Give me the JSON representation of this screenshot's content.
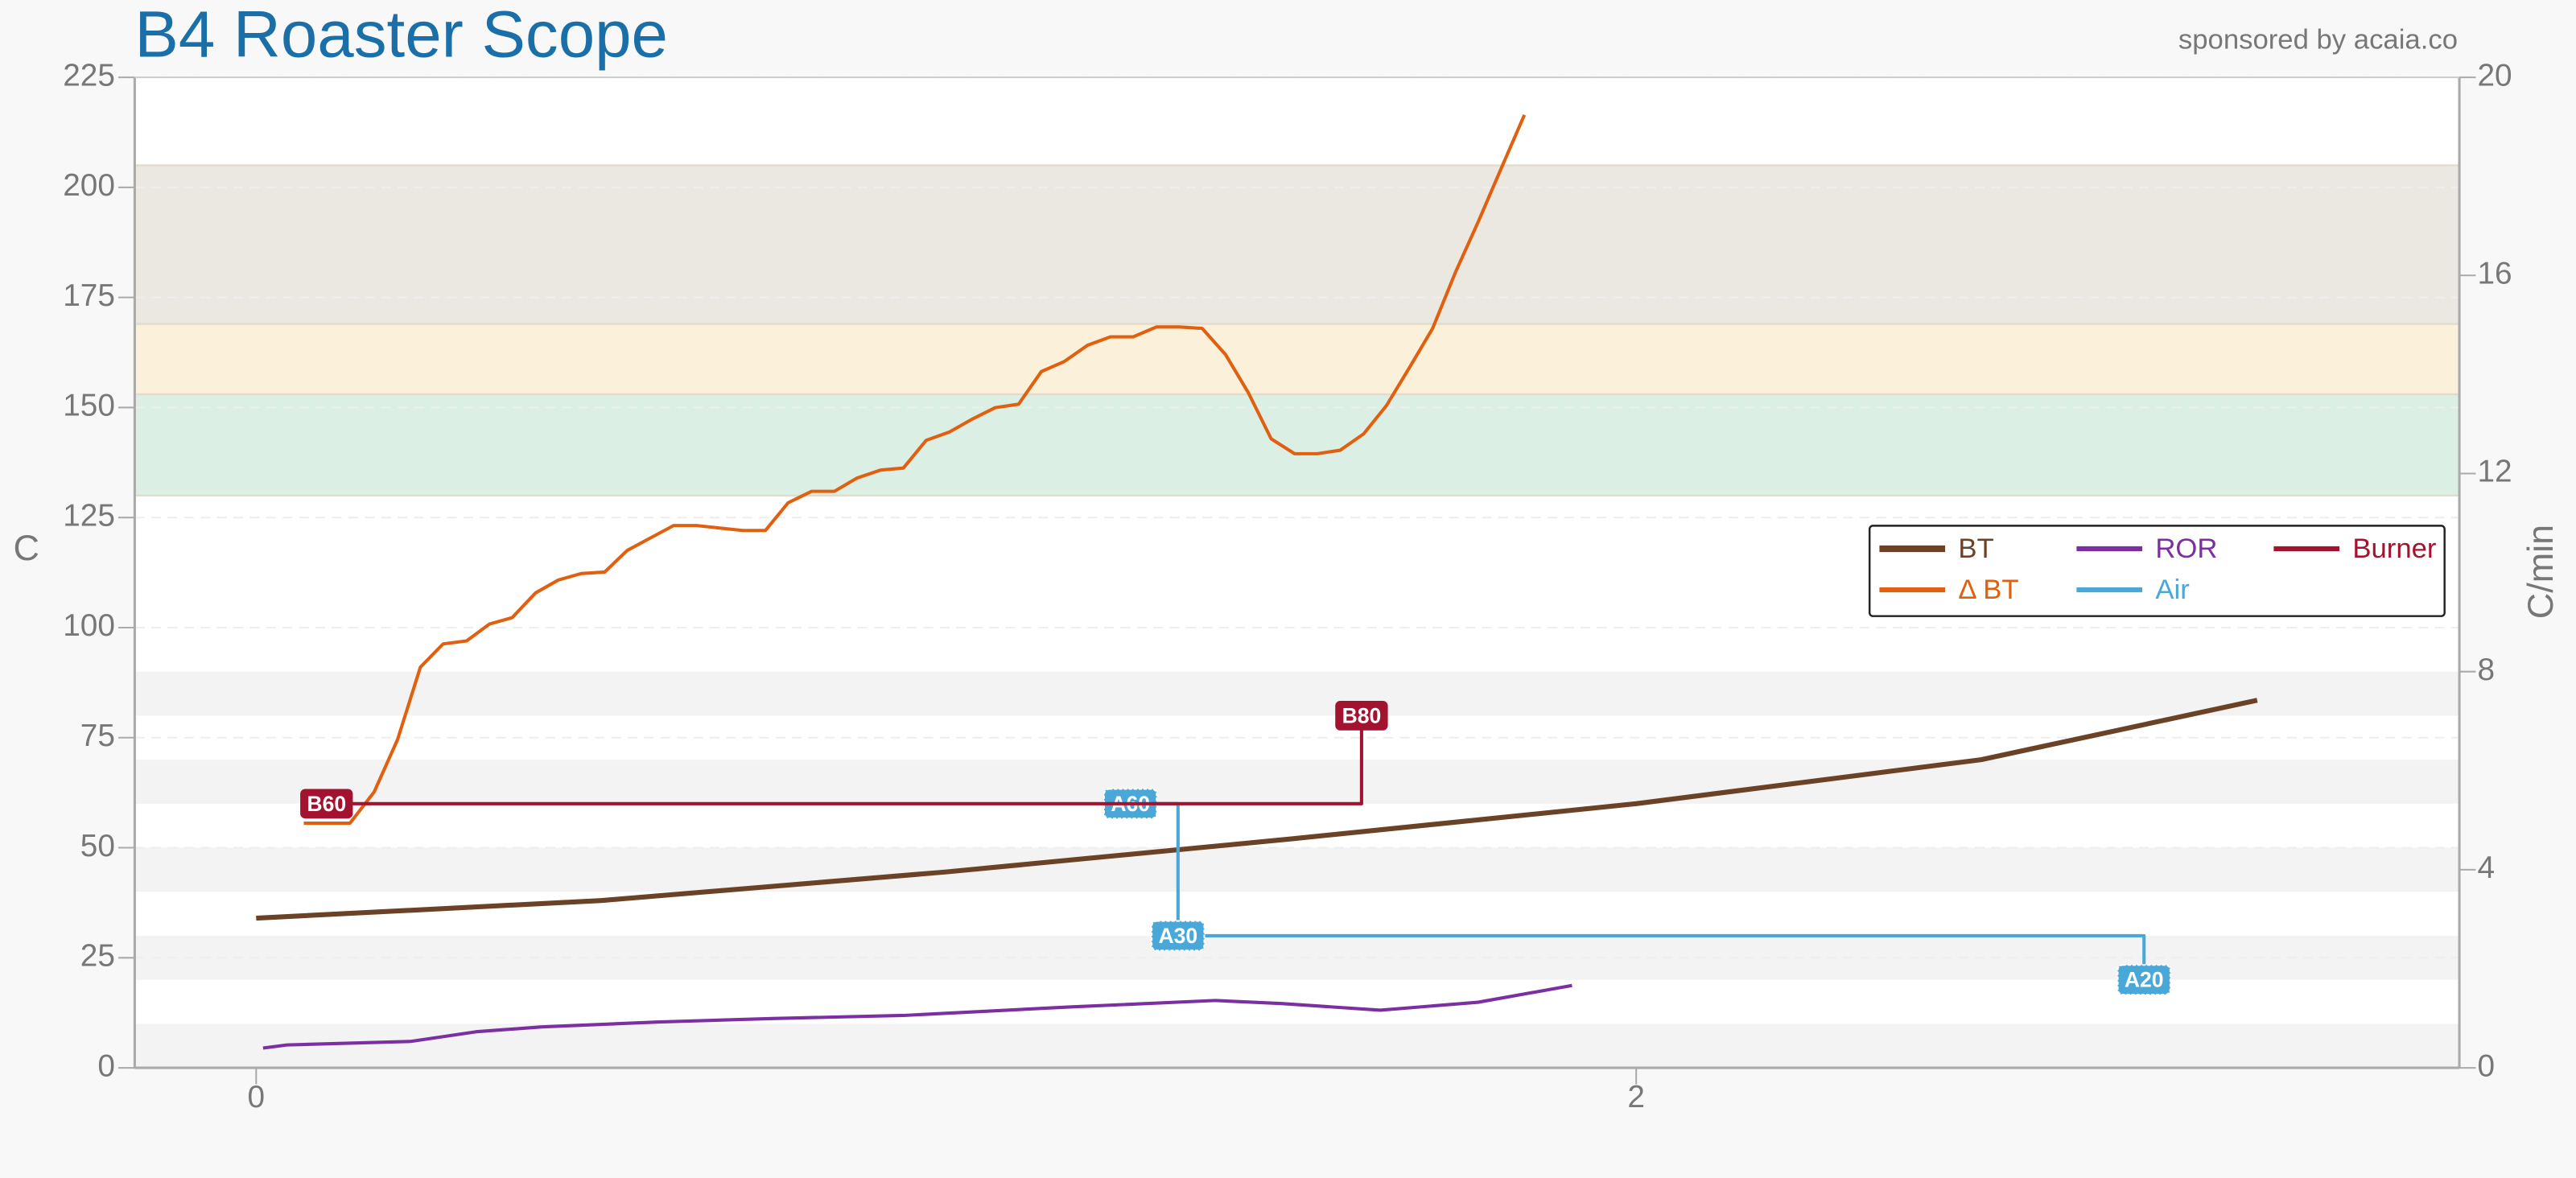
{
  "chart_data": {
    "type": "line",
    "title": "B4 Roaster Scope",
    "subtitle": "sponsored by acaia.co",
    "y_label": "C",
    "y2_label": "C/min",
    "xlim": [
      -0.176,
      3.193
    ],
    "xticks": [
      0,
      2
    ],
    "ylim": [
      0,
      225
    ],
    "yticks": [
      0,
      25,
      50,
      75,
      100,
      125,
      150,
      175,
      200,
      225
    ],
    "y2lim": [
      0,
      20
    ],
    "y2ticks": [
      0,
      4,
      8,
      12,
      16,
      20
    ],
    "grid": true,
    "legend": "right",
    "bands": [
      {
        "from": 0,
        "to": 10,
        "color": "#f3f3f3"
      },
      {
        "from": 20,
        "to": 30,
        "color": "#f3f3f3"
      },
      {
        "from": 40,
        "to": 50,
        "color": "#f3f3f3"
      },
      {
        "from": 60,
        "to": 70,
        "color": "#f3f3f3"
      },
      {
        "from": 80,
        "to": 90,
        "color": "#f3f3f3"
      },
      {
        "from": 130,
        "to": 153,
        "color": "#dcefe5"
      },
      {
        "from": 153,
        "to": 169,
        "color": "#fbf0d9"
      },
      {
        "from": 169,
        "to": 205,
        "color": "#ebe7e1"
      }
    ],
    "series": [
      {
        "name": "BT",
        "color": "#6b4226",
        "width": 3,
        "axis": "y",
        "x": [
          0,
          0.5,
          1,
          1.5,
          2,
          2.5,
          2.9
        ],
        "values": [
          34,
          38,
          44.5,
          52,
          60,
          70,
          83.5
        ]
      },
      {
        "name": "Δ BT",
        "color": "#e0600f",
        "width": 2,
        "axis": "y2",
        "x": [
          0.069,
          0.136,
          0.171,
          0.205,
          0.238,
          0.271,
          0.305,
          0.338,
          0.371,
          0.405,
          0.438,
          0.471,
          0.505,
          0.538,
          0.605,
          0.638,
          0.705,
          0.738,
          0.771,
          0.805,
          0.838,
          0.871,
          0.905,
          0.938,
          0.971,
          1.005,
          1.038,
          1.071,
          1.105,
          1.138,
          1.171,
          1.205,
          1.238,
          1.271,
          1.305,
          1.338,
          1.371,
          1.405,
          1.438,
          1.471,
          1.505,
          1.538,
          1.571,
          1.605,
          1.638,
          1.671,
          1.705,
          1.738,
          1.771,
          1.805,
          1.838
        ],
        "values": [
          4.94,
          4.94,
          5.57,
          6.63,
          8.09,
          8.56,
          8.62,
          8.96,
          9.09,
          9.59,
          9.85,
          9.98,
          10.01,
          10.45,
          10.95,
          10.95,
          10.85,
          10.85,
          11.41,
          11.64,
          11.64,
          11.91,
          12.07,
          12.11,
          12.67,
          12.84,
          13.1,
          13.33,
          13.4,
          14.06,
          14.26,
          14.59,
          14.76,
          14.76,
          14.96,
          14.96,
          14.93,
          14.4,
          13.63,
          12.7,
          12.4,
          12.4,
          12.47,
          12.8,
          13.37,
          14.13,
          14.93,
          16.06,
          17.08,
          18.18,
          19.24
        ]
      },
      {
        "name": "ROR",
        "color": "#7b2fa0",
        "width": 2,
        "axis": "y",
        "x": [
          0.01,
          0.045,
          0.224,
          0.319,
          0.414,
          0.581,
          0.748,
          0.938,
          1.176,
          1.39,
          1.486,
          1.629,
          1.771,
          1.907
        ],
        "values": [
          4.5,
          5.2,
          6,
          8.2,
          9.3,
          10.4,
          11.2,
          11.9,
          13.8,
          15.3,
          14.6,
          13.1,
          14.9,
          18.7
        ]
      },
      {
        "name": "Air",
        "color": "#4aa8d8",
        "width": 2,
        "axis": "y",
        "step": "after",
        "x": [
          1.267,
          1.336,
          2.736
        ],
        "values": [
          60,
          30,
          20
        ],
        "value_labels": [
          "A60",
          "A30",
          "A20"
        ]
      },
      {
        "name": "Burner",
        "color": "#a3122f",
        "width": 2,
        "axis": "y",
        "step": "after",
        "x": [
          0.102,
          1.602
        ],
        "values": [
          60,
          80
        ],
        "value_labels": [
          "B60",
          "B80"
        ]
      }
    ]
  }
}
